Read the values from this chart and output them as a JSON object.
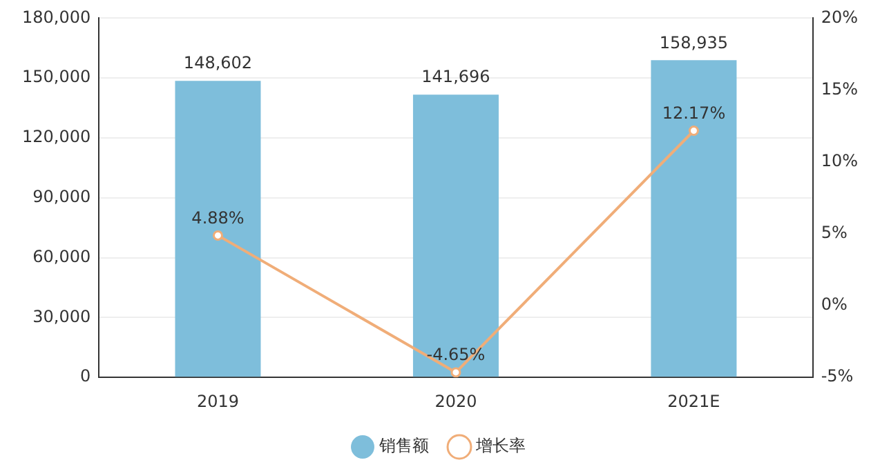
{
  "chart_data": {
    "type": "bar",
    "categories": [
      "2019",
      "2020",
      "2021E"
    ],
    "series": [
      {
        "name": "销售额",
        "color": "#7ebedb",
        "values": [
          148602,
          141696,
          158935
        ],
        "value_labels": [
          "148,602",
          "141,696",
          "158,935"
        ]
      },
      {
        "name": "增长率",
        "type": "line",
        "axis": "y2",
        "color": "#f0ad78",
        "values": [
          4.88,
          -4.65,
          12.17
        ],
        "value_labels": [
          "4.88%",
          "-4.65%",
          "12.17%"
        ]
      }
    ],
    "ylim": [
      0,
      180000
    ],
    "yticks": [
      {
        "value": 0,
        "label": "0"
      },
      {
        "value": 30000,
        "label": "30,000"
      },
      {
        "value": 60000,
        "label": "60,000"
      },
      {
        "value": 90000,
        "label": "90,000"
      },
      {
        "value": 120000,
        "label": "120,000"
      },
      {
        "value": 150000,
        "label": "150,000"
      },
      {
        "value": 180000,
        "label": "180,000"
      }
    ],
    "y2lim": [
      -5,
      20
    ],
    "y2ticks": [
      {
        "value": -5,
        "label": "-5%"
      },
      {
        "value": 0,
        "label": "0%"
      },
      {
        "value": 5,
        "label": "5%"
      },
      {
        "value": 10,
        "label": "10%"
      },
      {
        "value": 15,
        "label": "15%"
      },
      {
        "value": 20,
        "label": "20%"
      }
    ],
    "grid": "y",
    "legend": "bottom",
    "marker": "circle"
  }
}
